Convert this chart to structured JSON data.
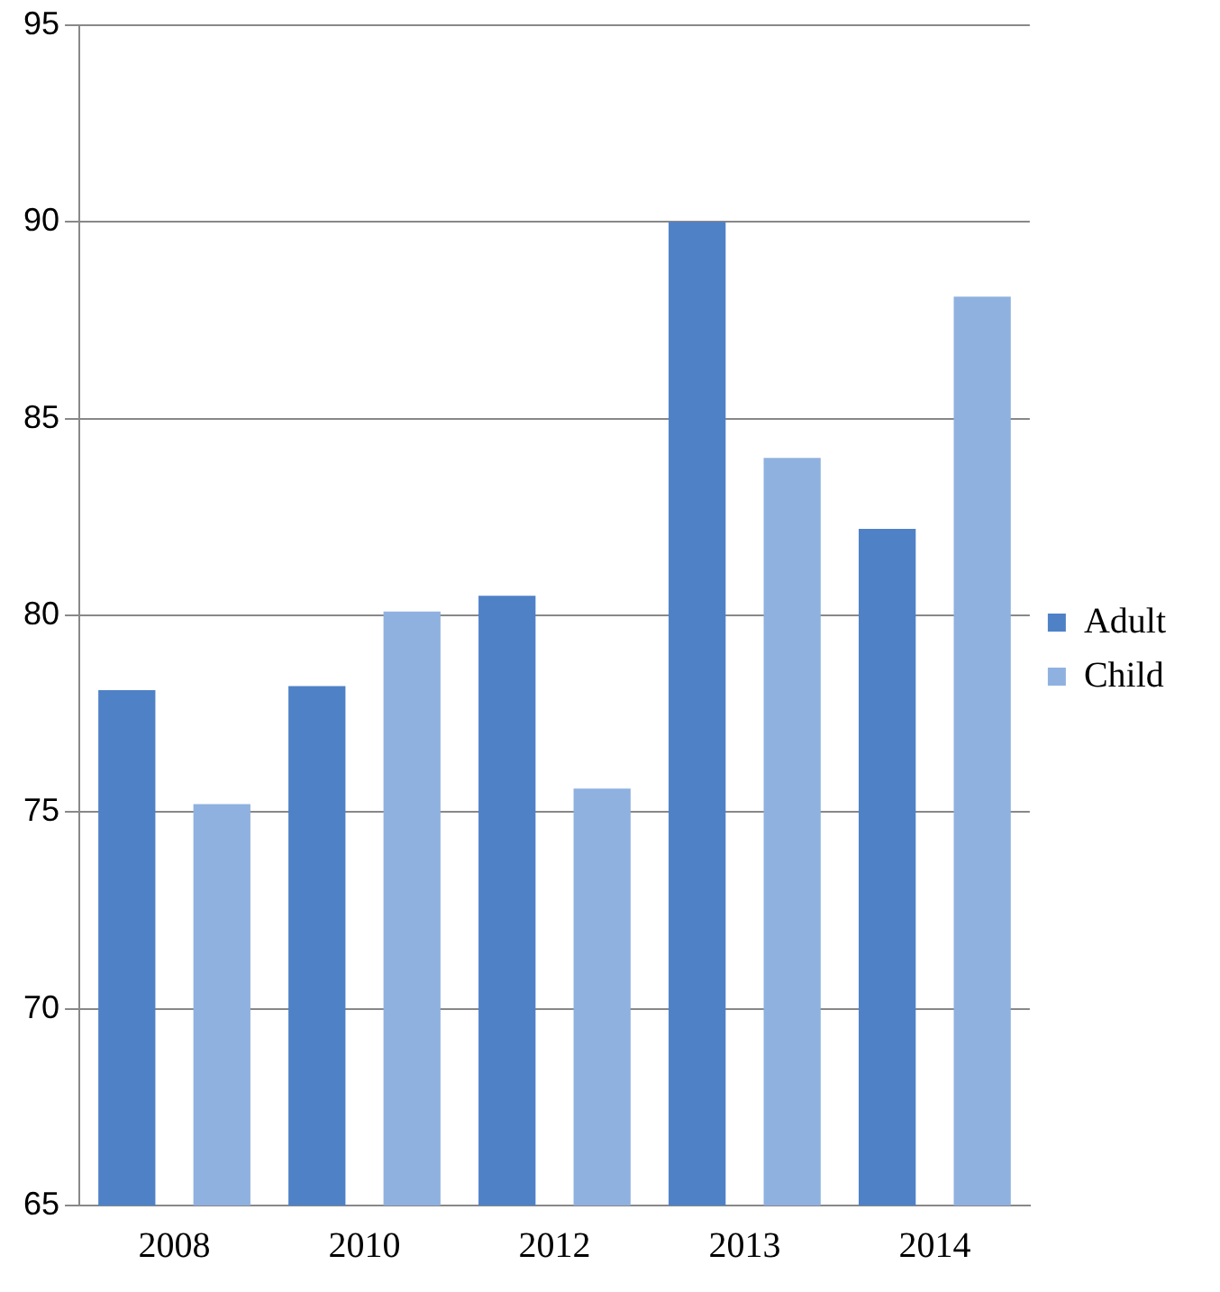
{
  "chart_data": {
    "type": "bar",
    "categories": [
      "2008",
      "2010",
      "2012",
      "2013",
      "2014"
    ],
    "series": [
      {
        "name": "Adult",
        "color": "#4f81c7",
        "values": [
          78.1,
          78.2,
          80.5,
          90,
          82.2
        ]
      },
      {
        "name": "Child",
        "color": "#8fb1e0",
        "values": [
          75.2,
          80.1,
          75.6,
          84,
          88.1
        ]
      }
    ],
    "ylim": [
      65,
      95
    ],
    "yticks": [
      65,
      70,
      75,
      80,
      85,
      90,
      95
    ],
    "grid": "y",
    "legend": "right"
  }
}
